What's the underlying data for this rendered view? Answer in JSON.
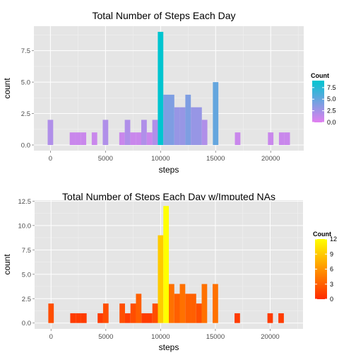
{
  "chart_data": [
    {
      "type": "bar",
      "title": "Total Number of Steps Each Day",
      "xlabel": "steps",
      "ylabel": "count",
      "xlim": [
        -1500,
        23000
      ],
      "ylim": [
        -0.45,
        9.45
      ],
      "x_ticks": [
        0,
        5000,
        10000,
        15000,
        20000
      ],
      "x_tick_labels": [
        "0",
        "5000",
        "10000",
        "15000",
        "20000"
      ],
      "y_ticks": [
        0,
        2.5,
        5,
        7.5
      ],
      "y_tick_labels": [
        "0.0",
        "2.5",
        "5.0",
        "7.5"
      ],
      "bin_width": 500,
      "bins": [
        {
          "x": 0,
          "count": 2
        },
        {
          "x": 2000,
          "count": 1
        },
        {
          "x": 2500,
          "count": 1
        },
        {
          "x": 3000,
          "count": 1
        },
        {
          "x": 4000,
          "count": 1
        },
        {
          "x": 5000,
          "count": 2
        },
        {
          "x": 6500,
          "count": 1
        },
        {
          "x": 7000,
          "count": 2
        },
        {
          "x": 7500,
          "count": 1
        },
        {
          "x": 8000,
          "count": 1
        },
        {
          "x": 8500,
          "count": 2
        },
        {
          "x": 9000,
          "count": 1
        },
        {
          "x": 9500,
          "count": 2
        },
        {
          "x": 10000,
          "count": 9
        },
        {
          "x": 10500,
          "count": 4
        },
        {
          "x": 11000,
          "count": 4
        },
        {
          "x": 11500,
          "count": 3
        },
        {
          "x": 12000,
          "count": 3
        },
        {
          "x": 12500,
          "count": 4
        },
        {
          "x": 13000,
          "count": 3
        },
        {
          "x": 13500,
          "count": 3
        },
        {
          "x": 14000,
          "count": 2
        },
        {
          "x": 15000,
          "count": 5
        },
        {
          "x": 17000,
          "count": 1
        },
        {
          "x": 20000,
          "count": 1
        },
        {
          "x": 21000,
          "count": 1
        },
        {
          "x": 21500,
          "count": 1
        }
      ],
      "legend": {
        "title": "Count",
        "position": "right",
        "ticks": [
          0,
          2.5,
          5,
          7.5
        ],
        "tick_labels": [
          "0.0",
          "2.5",
          "5.0",
          "7.5"
        ],
        "range": [
          0,
          9
        ],
        "color_low": "#e27ff0",
        "color_high": "#00c5d0"
      },
      "grid": true
    },
    {
      "type": "bar",
      "title": "Total Number of Steps Each Day w/Imputed NAs",
      "xlabel": "steps",
      "ylabel": "count",
      "xlim": [
        -1500,
        23000
      ],
      "ylim": [
        -0.6,
        12.6
      ],
      "x_ticks": [
        0,
        5000,
        10000,
        15000,
        20000
      ],
      "x_tick_labels": [
        "0",
        "5000",
        "10000",
        "15000",
        "20000"
      ],
      "y_ticks": [
        0,
        2.5,
        5,
        7.5,
        10,
        12.5
      ],
      "y_tick_labels": [
        "0.0",
        "2.5",
        "5.0",
        "7.5",
        "10.0",
        "12.5"
      ],
      "bin_width": 500,
      "bins": [
        {
          "x": 0,
          "count": 2
        },
        {
          "x": 2000,
          "count": 1
        },
        {
          "x": 2500,
          "count": 1
        },
        {
          "x": 3000,
          "count": 1
        },
        {
          "x": 4500,
          "count": 1
        },
        {
          "x": 5000,
          "count": 2
        },
        {
          "x": 6500,
          "count": 2
        },
        {
          "x": 7000,
          "count": 1
        },
        {
          "x": 7500,
          "count": 2
        },
        {
          "x": 8000,
          "count": 3
        },
        {
          "x": 8500,
          "count": 1
        },
        {
          "x": 9000,
          "count": 1
        },
        {
          "x": 9500,
          "count": 2
        },
        {
          "x": 10000,
          "count": 9
        },
        {
          "x": 10500,
          "count": 12
        },
        {
          "x": 11000,
          "count": 4
        },
        {
          "x": 11500,
          "count": 3
        },
        {
          "x": 12000,
          "count": 4
        },
        {
          "x": 12500,
          "count": 3
        },
        {
          "x": 13000,
          "count": 3
        },
        {
          "x": 13500,
          "count": 2
        },
        {
          "x": 14000,
          "count": 4
        },
        {
          "x": 15000,
          "count": 4
        },
        {
          "x": 17000,
          "count": 1
        },
        {
          "x": 20000,
          "count": 1
        },
        {
          "x": 21000,
          "count": 1
        }
      ],
      "legend": {
        "title": "Count",
        "position": "right",
        "ticks": [
          0,
          3,
          6,
          9,
          12
        ],
        "tick_labels": [
          "0",
          "3",
          "6",
          "9",
          "12"
        ],
        "range": [
          0,
          12
        ],
        "color_low": "#ff2a00",
        "color_high": "#ffff00"
      },
      "grid": true
    }
  ]
}
